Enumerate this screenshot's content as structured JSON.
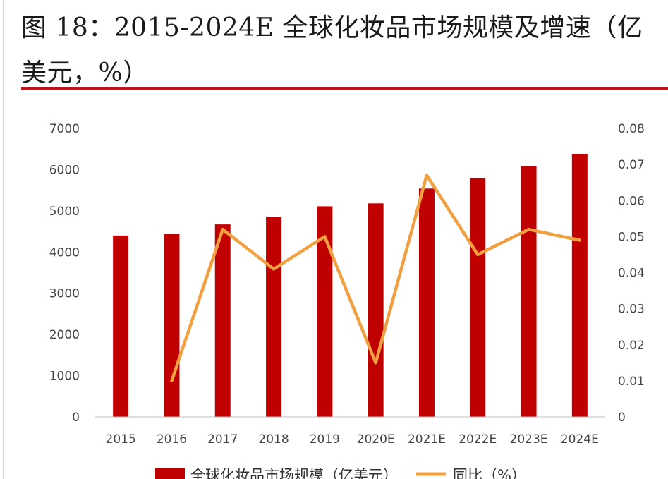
{
  "title": "图 18：2015-2024E 全球化妆品市场规模及增速（亿美元，%）",
  "colors": {
    "accent_rule": "#c0121b",
    "bar": "#c00000",
    "line": "#f0a040"
  },
  "chart_data": {
    "type": "bar",
    "categories": [
      "2015",
      "2016",
      "2017",
      "2018",
      "2019",
      "2020E",
      "2021E",
      "2022E",
      "2023E",
      "2024E"
    ],
    "series": [
      {
        "name": "全球化妆品市场规模（亿美元）",
        "type": "bar",
        "axis": "left",
        "values": [
          4400,
          4440,
          4670,
          4860,
          5110,
          5180,
          5540,
          5790,
          6080,
          6380
        ]
      },
      {
        "name": "同比（%）",
        "type": "line",
        "axis": "right",
        "values": [
          null,
          0.01,
          0.052,
          0.041,
          0.05,
          0.015,
          0.067,
          0.045,
          0.052,
          0.049
        ]
      }
    ],
    "ylim_left": [
      0,
      7000
    ],
    "yticks_left": [
      "0",
      "1000",
      "2000",
      "3000",
      "4000",
      "5000",
      "6000",
      "7000"
    ],
    "ylim_right": [
      0,
      0.08
    ],
    "yticks_right": [
      "0",
      "0.01",
      "0.02",
      "0.03",
      "0.04",
      "0.05",
      "0.06",
      "0.07",
      "0.08"
    ],
    "grid": false,
    "legend_position": "bottom"
  }
}
